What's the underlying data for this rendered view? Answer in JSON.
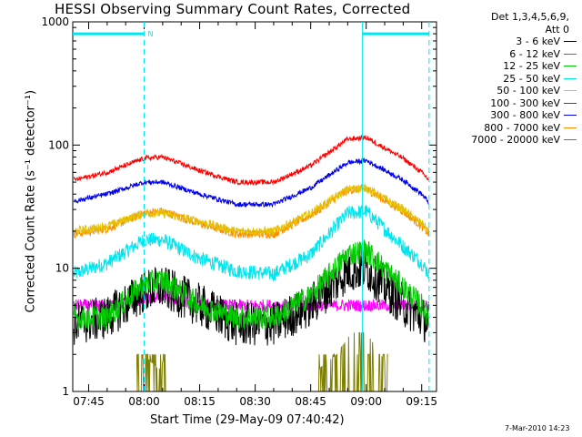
{
  "chart_data": {
    "type": "line",
    "title": "HESSI Observing Summary Count Rates, Corrected",
    "xlabel": "Start Time (29-May-09 07:40:42)",
    "ylabel": "Corrected Count Rate (s⁻¹ detector⁻¹)",
    "yscale": "log",
    "ylim": [
      1,
      1000
    ],
    "xlim": [
      "07:40:42",
      "09:19:00"
    ],
    "xticks": [
      "07:45",
      "08:00",
      "08:15",
      "08:30",
      "08:45",
      "09:00",
      "09:15"
    ],
    "yticks": [
      "1",
      "10",
      "100",
      "1000"
    ],
    "legend_header": [
      "Det 1,3,4,5,6,9,",
      "Att 0"
    ],
    "legend_position": "right",
    "flags": {
      "night_label": "N"
    },
    "series": [
      {
        "name": "3 - 6 keV",
        "color": "#000000",
        "x": [
          "07:41",
          "07:50",
          "08:00",
          "08:05",
          "08:15",
          "08:25",
          "08:35",
          "08:45",
          "08:55",
          "09:00",
          "09:10",
          "09:15",
          "09:17"
        ],
        "values": [
          3.5,
          4,
          6.5,
          7,
          5,
          3.5,
          3.5,
          5,
          9.5,
          10,
          5,
          4,
          3.5
        ]
      },
      {
        "name": "6 - 12 keV",
        "color": "#ff00ff",
        "x": [
          "07:41",
          "07:50",
          "08:00",
          "08:05",
          "08:15",
          "08:25",
          "08:35",
          "08:45",
          "08:55",
          "09:00",
          "09:10",
          "09:15",
          "09:17"
        ],
        "values": [
          5,
          5,
          5.5,
          6,
          5,
          5,
          5,
          5,
          5,
          5,
          5,
          5,
          5
        ]
      },
      {
        "name": "12 - 25 keV",
        "color": "#00cc00",
        "x": [
          "07:41",
          "07:50",
          "08:00",
          "08:05",
          "08:15",
          "08:25",
          "08:35",
          "08:45",
          "08:55",
          "09:00",
          "09:10",
          "09:15",
          "09:17"
        ],
        "values": [
          4,
          4,
          7.5,
          8,
          5,
          4,
          4,
          6,
          13,
          14,
          7,
          5,
          4
        ]
      },
      {
        "name": "25 - 50 keV",
        "color": "#00e5ee",
        "x": [
          "07:41",
          "07:50",
          "08:00",
          "08:05",
          "08:15",
          "08:25",
          "08:35",
          "08:45",
          "08:55",
          "09:00",
          "09:10",
          "09:15",
          "09:17"
        ],
        "values": [
          9,
          11,
          17,
          17,
          12,
          9.5,
          9,
          13,
          28,
          29,
          15,
          11,
          9
        ]
      },
      {
        "name": "50 - 100 keV",
        "color": "#e5c100",
        "x": [
          "07:41",
          "07:50",
          "08:00",
          "08:05",
          "08:15",
          "08:25",
          "08:35",
          "08:45",
          "08:55",
          "09:00",
          "09:10",
          "09:15",
          "09:17"
        ],
        "values": [
          20,
          22,
          28,
          28,
          24,
          20,
          20,
          28,
          44,
          45,
          30,
          23,
          20
        ]
      },
      {
        "name": "100 - 300 keV",
        "color": "#ff0000",
        "x": [
          "07:41",
          "07:50",
          "08:00",
          "08:05",
          "08:15",
          "08:25",
          "08:35",
          "08:45",
          "08:55",
          "09:00",
          "09:10",
          "09:15",
          "09:17"
        ],
        "values": [
          52,
          60,
          78,
          80,
          62,
          50,
          50,
          68,
          112,
          115,
          78,
          60,
          52
        ]
      },
      {
        "name": "300 - 800 keV",
        "color": "#0000ee",
        "x": [
          "07:41",
          "07:50",
          "08:00",
          "08:05",
          "08:15",
          "08:25",
          "08:35",
          "08:45",
          "08:55",
          "09:00",
          "09:10",
          "09:15",
          "09:17"
        ],
        "values": [
          35,
          40,
          50,
          50,
          40,
          33,
          33,
          45,
          72,
          75,
          52,
          40,
          34
        ]
      },
      {
        "name": "800 - 7000 keV",
        "color": "#ff8c00",
        "x": [
          "07:41",
          "07:50",
          "08:00",
          "08:05",
          "08:15",
          "08:25",
          "08:35",
          "08:45",
          "08:55",
          "09:00",
          "09:10",
          "09:15",
          "09:17"
        ],
        "values": [
          19,
          21,
          28,
          29,
          23,
          19,
          19,
          27,
          43,
          44,
          29,
          22,
          19
        ]
      },
      {
        "name": "7000 - 20000 keV",
        "color": "#808000",
        "x": [
          "07:58",
          "08:00",
          "08:04",
          "08:06",
          "08:47",
          "08:52",
          "08:56",
          "09:00",
          "09:04",
          "09:06"
        ],
        "values": [
          1.5,
          2,
          1.5,
          2,
          1.5,
          2,
          3,
          3,
          2,
          1.5
        ]
      }
    ]
  }
}
